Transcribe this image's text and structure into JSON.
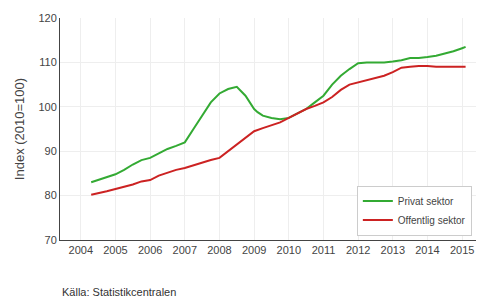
{
  "chart_data": {
    "type": "line",
    "y_label": "Index (2010=100)",
    "annotations": [
      "Källa: Statistikcentralen"
    ],
    "xlim": [
      2003.4,
      2015.4
    ],
    "xticks": [
      2004,
      2005,
      2006,
      2007,
      2008,
      2009,
      2010,
      2011,
      2012,
      2013,
      2014,
      2015
    ],
    "ylim": [
      70,
      120
    ],
    "yticks": [
      70,
      80,
      90,
      100,
      110,
      120
    ],
    "grid": true,
    "legend": "lower right",
    "series": [
      {
        "name": "Privat sektor",
        "color": "#33aa33",
        "x": [
          2004.3,
          2004.5,
          2004.75,
          2005.0,
          2005.25,
          2005.5,
          2005.75,
          2006.0,
          2006.25,
          2006.5,
          2006.75,
          2007.0,
          2007.25,
          2007.5,
          2007.75,
          2008.0,
          2008.25,
          2008.5,
          2008.75,
          2009.0,
          2009.1,
          2009.25,
          2009.5,
          2009.75,
          2010.0,
          2010.25,
          2010.5,
          2010.75,
          2011.0,
          2011.25,
          2011.5,
          2011.75,
          2012.0,
          2012.25,
          2012.5,
          2012.75,
          2013.0,
          2013.25,
          2013.5,
          2013.75,
          2014.0,
          2014.25,
          2014.5,
          2014.75,
          2015.0,
          2015.1
        ],
        "values": [
          83.0,
          83.5,
          84.2,
          84.8,
          85.8,
          87.0,
          88.0,
          88.5,
          89.5,
          90.5,
          91.2,
          92.0,
          95.0,
          98.0,
          101.0,
          103.0,
          104.0,
          104.5,
          102.5,
          99.5,
          98.8,
          98.0,
          97.5,
          97.2,
          97.5,
          98.5,
          99.5,
          101.0,
          102.5,
          105.0,
          107.0,
          108.5,
          109.8,
          110.0,
          110.0,
          110.0,
          110.2,
          110.5,
          111.0,
          111.0,
          111.2,
          111.5,
          112.0,
          112.5,
          113.2,
          113.5
        ]
      },
      {
        "name": "Offentlig sektor",
        "color": "#cc2222",
        "x": [
          2004.3,
          2004.5,
          2004.75,
          2005.0,
          2005.25,
          2005.5,
          2005.75,
          2006.0,
          2006.25,
          2006.5,
          2006.75,
          2007.0,
          2007.25,
          2007.5,
          2007.75,
          2008.0,
          2008.25,
          2008.5,
          2008.75,
          2009.0,
          2009.25,
          2009.5,
          2009.75,
          2010.0,
          2010.25,
          2010.5,
          2010.75,
          2011.0,
          2011.25,
          2011.5,
          2011.75,
          2012.0,
          2012.25,
          2012.5,
          2012.75,
          2013.0,
          2013.25,
          2013.5,
          2013.75,
          2014.0,
          2014.25,
          2014.5,
          2014.75,
          2015.0,
          2015.1
        ],
        "values": [
          80.2,
          80.5,
          81.0,
          81.5,
          82.0,
          82.5,
          83.2,
          83.5,
          84.5,
          85.2,
          85.8,
          86.2,
          86.8,
          87.5,
          88.0,
          88.5,
          90.0,
          91.5,
          93.0,
          94.5,
          95.2,
          95.8,
          96.5,
          97.5,
          98.5,
          99.5,
          100.2,
          101.0,
          102.2,
          103.8,
          105.0,
          105.5,
          106.0,
          106.5,
          107.0,
          107.8,
          108.8,
          109.0,
          109.2,
          109.2,
          109.0,
          109.0,
          109.0,
          109.0,
          109.0
        ]
      }
    ]
  }
}
